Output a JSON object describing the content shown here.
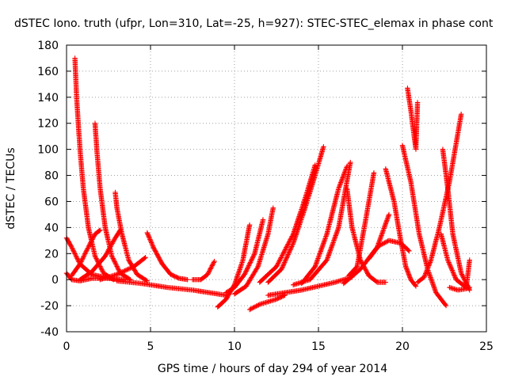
{
  "chart_data": {
    "type": "scatter",
    "title": "dSTEC Iono. truth (ufpr, Lon=310, Lat=-25, h=927): STEC-STEC_elemax in phase cont",
    "xlabel": "GPS time / hours of day 294 of year 2014",
    "ylabel": "dSTEC  / TECUs",
    "xlim": [
      0,
      25
    ],
    "ylim": [
      -40,
      180
    ],
    "x_ticks": [
      0,
      5,
      10,
      15,
      20,
      25
    ],
    "y_ticks": [
      -40,
      -20,
      0,
      20,
      40,
      60,
      80,
      100,
      120,
      140,
      160,
      180
    ],
    "x_tick_labels": [
      "0",
      "5",
      "10",
      "15",
      "20",
      "25"
    ],
    "y_tick_labels": [
      "-40",
      "-20",
      "0",
      "20",
      "40",
      "60",
      "80",
      "100",
      "120",
      "140",
      "160",
      "180"
    ],
    "grid": true,
    "marker": "plus",
    "color": "#ff0000",
    "series": [
      {
        "x": [
          0.0,
          0.3,
          0.8,
          1.5,
          2.5,
          3.5
        ],
        "y": [
          5,
          0,
          -1,
          1,
          1,
          0
        ]
      },
      {
        "x": [
          0.0,
          0.3,
          0.8,
          1.5,
          2.2,
          3.0
        ],
        "y": [
          32,
          25,
          12,
          4,
          2,
          0
        ]
      },
      {
        "x": [
          0.5,
          0.6,
          0.8,
          1.0,
          1.3,
          1.7,
          2.2,
          2.8
        ],
        "y": [
          170,
          140,
          100,
          70,
          40,
          18,
          5,
          0
        ]
      },
      {
        "x": [
          0.3,
          0.8,
          1.3,
          1.7,
          2.0
        ],
        "y": [
          3,
          12,
          25,
          35,
          38
        ]
      },
      {
        "x": [
          1.7,
          1.8,
          2.0,
          2.3,
          2.7,
          3.2,
          3.8
        ],
        "y": [
          120,
          100,
          70,
          40,
          18,
          5,
          0
        ]
      },
      {
        "x": [
          0.8,
          1.5,
          2.3,
          2.9,
          3.2
        ],
        "y": [
          0,
          6,
          18,
          32,
          38
        ]
      },
      {
        "x": [
          2.9,
          3.0,
          3.3,
          3.7,
          4.2,
          4.8
        ],
        "y": [
          67,
          55,
          35,
          15,
          4,
          -1
        ]
      },
      {
        "x": [
          2.0,
          3.0,
          4.0,
          4.7
        ],
        "y": [
          0,
          4,
          10,
          17
        ]
      },
      {
        "x": [
          4.8,
          5.2,
          5.7,
          6.2,
          6.7,
          7.2
        ],
        "y": [
          36,
          24,
          12,
          4,
          1,
          0
        ]
      },
      {
        "x": [
          3.0,
          4.5,
          6.0,
          7.5,
          8.5,
          9.5
        ],
        "y": [
          -1,
          -3,
          -6,
          -8,
          -10,
          -12
        ]
      },
      {
        "x": [
          7.5,
          8.0,
          8.4,
          8.8
        ],
        "y": [
          0,
          0,
          4,
          14
        ]
      },
      {
        "x": [
          9.0,
          9.5,
          10.0,
          10.5,
          10.9
        ],
        "y": [
          -21,
          -15,
          -4,
          15,
          42
        ]
      },
      {
        "x": [
          9.5,
          10.0,
          10.6,
          11.2,
          11.7
        ],
        "y": [
          -10,
          -6,
          4,
          20,
          46
        ]
      },
      {
        "x": [
          10.0,
          10.7,
          11.4,
          12.0,
          12.3
        ],
        "y": [
          -11,
          -5,
          10,
          35,
          55
        ]
      },
      {
        "x": [
          10.9,
          11.5,
          12.0,
          12.5,
          13.0
        ],
        "y": [
          -23,
          -19,
          -17,
          -15,
          -12
        ]
      },
      {
        "x": [
          12.0,
          13.0,
          14.0,
          15.0,
          16.0,
          17.0
        ],
        "y": [
          -12,
          -10,
          -8,
          -5,
          -2,
          2
        ]
      },
      {
        "x": [
          12.0,
          12.8,
          13.5,
          14.2,
          14.8,
          15.3
        ],
        "y": [
          -2,
          8,
          28,
          55,
          80,
          102
        ]
      },
      {
        "x": [
          11.5,
          12.5,
          13.5,
          14.2,
          14.8
        ],
        "y": [
          -2,
          10,
          35,
          62,
          88
        ]
      },
      {
        "x": [
          14.0,
          14.8,
          15.5,
          16.2,
          16.7
        ],
        "y": [
          -3,
          10,
          35,
          70,
          87
        ]
      },
      {
        "x": [
          13.5,
          14.5,
          15.5,
          16.2,
          16.9
        ],
        "y": [
          -4,
          0,
          15,
          40,
          90
        ]
      },
      {
        "x": [
          16.7,
          17.0,
          17.5,
          18.0,
          18.5,
          19.0
        ],
        "y": [
          70,
          40,
          15,
          3,
          -2,
          -2
        ]
      },
      {
        "x": [
          16.8,
          17.3,
          17.8,
          18.3
        ],
        "y": [
          3,
          10,
          45,
          82
        ]
      },
      {
        "x": [
          16.5,
          17.5,
          18.5,
          19.2
        ],
        "y": [
          -3,
          8,
          25,
          50
        ]
      },
      {
        "x": [
          18.0,
          18.6,
          19.2,
          19.9,
          20.4
        ],
        "y": [
          16,
          26,
          30,
          28,
          22
        ]
      },
      {
        "x": [
          19.0,
          19.5,
          19.9,
          20.2,
          20.5,
          20.8
        ],
        "y": [
          85,
          60,
          30,
          10,
          0,
          -5
        ]
      },
      {
        "x": [
          20.0,
          20.5,
          21.0,
          21.5,
          22.0,
          22.6
        ],
        "y": [
          103,
          75,
          35,
          8,
          -10,
          -20
        ]
      },
      {
        "x": [
          20.3,
          20.5,
          20.7,
          20.8,
          20.9
        ],
        "y": [
          147,
          130,
          110,
          100,
          136
        ]
      },
      {
        "x": [
          20.9,
          21.3,
          21.7,
          22.2,
          22.8,
          23.5
        ],
        "y": [
          -2,
          2,
          15,
          40,
          75,
          127
        ]
      },
      {
        "x": [
          22.4,
          22.7,
          23.0,
          23.5,
          24.0
        ],
        "y": [
          100,
          70,
          35,
          5,
          -8
        ]
      },
      {
        "x": [
          22.3,
          22.7,
          23.2,
          23.8,
          24.0
        ],
        "y": [
          35,
          15,
          0,
          -6,
          15
        ]
      },
      {
        "x": [
          22.8,
          23.3,
          23.8,
          24.0
        ],
        "y": [
          -6,
          -8,
          -7,
          -6
        ]
      }
    ]
  }
}
